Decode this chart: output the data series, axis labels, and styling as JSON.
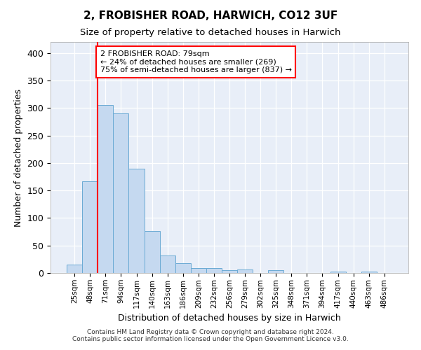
{
  "title_line1": "2, FROBISHER ROAD, HARWICH, CO12 3UF",
  "title_line2": "Size of property relative to detached houses in Harwich",
  "xlabel": "Distribution of detached houses by size in Harwich",
  "ylabel": "Number of detached properties",
  "bar_color": "#c5d9f0",
  "bar_edge_color": "#6aaad4",
  "axes_bg_color": "#e8eef8",
  "fig_bg_color": "#ffffff",
  "grid_color": "#ffffff",
  "bins": [
    "25sqm",
    "48sqm",
    "71sqm",
    "94sqm",
    "117sqm",
    "140sqm",
    "163sqm",
    "186sqm",
    "209sqm",
    "232sqm",
    "256sqm",
    "279sqm",
    "302sqm",
    "325sqm",
    "348sqm",
    "371sqm",
    "394sqm",
    "417sqm",
    "440sqm",
    "463sqm",
    "486sqm"
  ],
  "values": [
    15,
    167,
    305,
    290,
    190,
    77,
    32,
    18,
    9,
    9,
    5,
    6,
    0,
    5,
    0,
    0,
    0,
    3,
    0,
    3,
    0
  ],
  "red_line_bin": 2,
  "annotation_text": "2 FROBISHER ROAD: 79sqm\n← 24% of detached houses are smaller (269)\n75% of semi-detached houses are larger (837) →",
  "ylim": [
    0,
    420
  ],
  "yticks": [
    0,
    50,
    100,
    150,
    200,
    250,
    300,
    350,
    400
  ],
  "footer_line1": "Contains HM Land Registry data © Crown copyright and database right 2024.",
  "footer_line2": "Contains public sector information licensed under the Open Government Licence v3.0."
}
